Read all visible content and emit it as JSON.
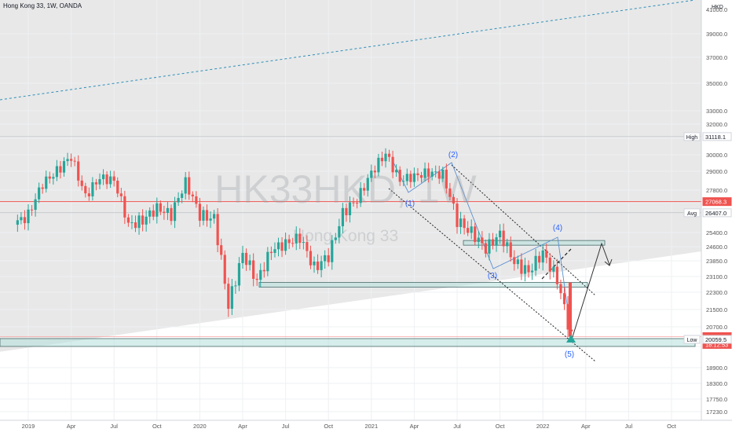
{
  "header": {
    "title": "Hong Kong 33, 1W, OANDA"
  },
  "watermark": {
    "symbol": "HK33HKD, 1W",
    "name": "Hong Kong 33"
  },
  "price_scale": {
    "currency": "HKD",
    "top_label": "41000.0",
    "ticks": [
      "39000.0",
      "37000.0",
      "35000.0",
      "33000.0",
      "32000.0",
      "31000.0",
      "30000.0",
      "29000.0",
      "27800.0",
      "27000.0",
      "26400.0",
      "25400.0",
      "24600.0",
      "23850.0",
      "23100.0",
      "22300.0",
      "21500.0",
      "20700.0",
      "19700.0",
      "18900.0",
      "18300.0",
      "17750.0",
      "17230.0"
    ],
    "markers": [
      {
        "text": "High",
        "value": "31118.1",
        "bg": "#ffffff",
        "fg": "#131722"
      },
      {
        "text": "",
        "value": "27068.3",
        "bg": "#ef5350",
        "fg": "#ffffff"
      },
      {
        "text": "Avg",
        "value": "26407.0",
        "bg": "#ffffff",
        "fg": "#131722"
      },
      {
        "text": "",
        "value": "20201.0",
        "sub": "18:12:53",
        "bg": "#ef5350",
        "fg": "#ffffff"
      },
      {
        "text": "Low",
        "value": "20059.5",
        "bg": "#ffffff",
        "fg": "#131722"
      }
    ]
  },
  "time_scale": {
    "ticks": [
      "2019",
      "Apr",
      "Jul",
      "Oct",
      "2020",
      "Apr",
      "Jul",
      "Oct",
      "2021",
      "Apr",
      "Jul",
      "Oct",
      "2022",
      "Apr",
      "Jul",
      "Oct"
    ]
  },
  "wave_labels": [
    "(1)",
    "(2)",
    "(3)",
    "(4)",
    "(5)"
  ],
  "colors": {
    "up": "#26a69a",
    "down": "#ef5350",
    "zone_fill": "#b2dfdb",
    "shade": "#e0e0e0",
    "channel": "#2962ff",
    "wave_text": "#2962ff"
  },
  "chart_data": {
    "type": "candlestick",
    "title": "Hong Kong 33, 1W, OANDA",
    "y_unit": "HKD",
    "ylim": [
      16900,
      41200
    ],
    "xlim": [
      "2018-12",
      "2022-11"
    ],
    "summary": {
      "high": 31118.1,
      "avg": 26407.0,
      "low": 20059.5,
      "last": 20201.0,
      "ref_line": 27068.3
    },
    "weekly_close_approx": [
      {
        "date": "2018-12",
        "value": 25800
      },
      {
        "date": "2019-01",
        "value": 26300
      },
      {
        "date": "2019-02",
        "value": 28200
      },
      {
        "date": "2019-03",
        "value": 29000
      },
      {
        "date": "2019-04",
        "value": 29900
      },
      {
        "date": "2019-05",
        "value": 27400
      },
      {
        "date": "2019-06",
        "value": 28600
      },
      {
        "date": "2019-07",
        "value": 28400
      },
      {
        "date": "2019-08",
        "value": 25800
      },
      {
        "date": "2019-09",
        "value": 26000
      },
      {
        "date": "2019-10",
        "value": 26700
      },
      {
        "date": "2019-11",
        "value": 26300
      },
      {
        "date": "2019-12",
        "value": 28300
      },
      {
        "date": "2020-01",
        "value": 26300
      },
      {
        "date": "2020-02",
        "value": 26100
      },
      {
        "date": "2020-03",
        "value": 21700
      },
      {
        "date": "2020-04",
        "value": 24200
      },
      {
        "date": "2020-05",
        "value": 22900
      },
      {
        "date": "2020-06",
        "value": 24400
      },
      {
        "date": "2020-07",
        "value": 24800
      },
      {
        "date": "2020-08",
        "value": 25100
      },
      {
        "date": "2020-09",
        "value": 23500
      },
      {
        "date": "2020-10",
        "value": 24100
      },
      {
        "date": "2020-11",
        "value": 26400
      },
      {
        "date": "2020-12",
        "value": 27200
      },
      {
        "date": "2021-01",
        "value": 28900
      },
      {
        "date": "2021-02",
        "value": 30100
      },
      {
        "date": "2021-03",
        "value": 28400
      },
      {
        "date": "2021-04",
        "value": 28700
      },
      {
        "date": "2021-05",
        "value": 28900
      },
      {
        "date": "2021-06",
        "value": 28800
      },
      {
        "date": "2021-07",
        "value": 26000
      },
      {
        "date": "2021-08",
        "value": 25400
      },
      {
        "date": "2021-09",
        "value": 24500
      },
      {
        "date": "2021-10",
        "value": 25300
      },
      {
        "date": "2021-11",
        "value": 23800
      },
      {
        "date": "2021-12",
        "value": 23300
      },
      {
        "date": "2022-01",
        "value": 24300
      },
      {
        "date": "2022-02",
        "value": 22900
      },
      {
        "date": "2022-03",
        "value": 20201
      }
    ],
    "annotations": {
      "zones": [
        {
          "from": 22600,
          "to": 22800
        },
        {
          "from": 24750,
          "to": 24950
        },
        {
          "from": 19700,
          "to": 20100
        }
      ],
      "waves": [
        "(1)",
        "(2)",
        "(3)",
        "(4)",
        "(5)"
      ]
    },
    "grid": true
  }
}
